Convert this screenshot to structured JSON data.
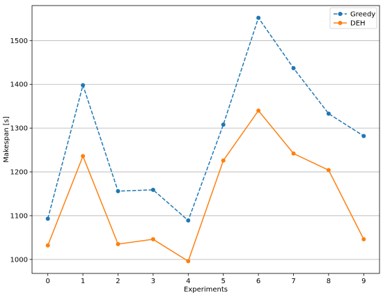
{
  "chart_data": {
    "type": "line",
    "title": "",
    "xlabel": "Experiments",
    "ylabel": "Makespan [s]",
    "x": [
      0,
      1,
      2,
      3,
      4,
      5,
      6,
      7,
      8,
      9
    ],
    "xticks": [
      0,
      1,
      2,
      3,
      4,
      5,
      6,
      7,
      8,
      9
    ],
    "yticks": [
      1000,
      1100,
      1200,
      1300,
      1400,
      1500
    ],
    "xlim": [
      -0.45,
      9.45
    ],
    "ylim": [
      968,
      1580
    ],
    "grid": "horizontal",
    "legend_position": "top-right",
    "series": [
      {
        "name": "Greedy",
        "values": [
          1093,
          1398,
          1156,
          1159,
          1089,
          1308,
          1552,
          1437,
          1333,
          1282
        ],
        "color": "#1f77b4",
        "linestyle": "dashed",
        "marker": "circle"
      },
      {
        "name": "DEH",
        "values": [
          1032,
          1236,
          1035,
          1046,
          996,
          1226,
          1340,
          1242,
          1204,
          1046
        ],
        "color": "#ff7f0e",
        "linestyle": "solid",
        "marker": "circle"
      }
    ]
  }
}
